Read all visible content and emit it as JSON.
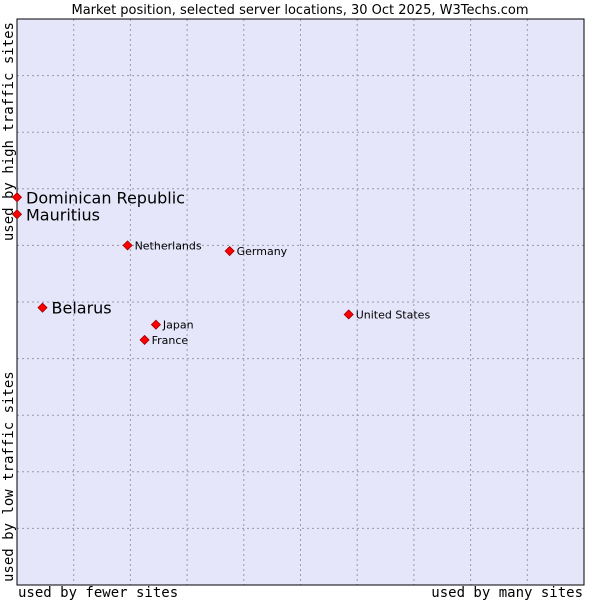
{
  "chart_data": {
    "type": "scatter",
    "title": "Market position, selected server locations, 30 Oct 2025, W3Techs.com",
    "xlabel_left": "used by fewer sites",
    "xlabel_right": "used by many sites",
    "ylabel_low": "used by low traffic sites",
    "ylabel_high": "used by high traffic sites",
    "xlim": [
      0,
      100
    ],
    "ylim": [
      0,
      100
    ],
    "grid": true,
    "colors": {
      "plot_background": "#e6e6fa",
      "grid": "#9999aa",
      "point": "#ff0000",
      "point_edge": "#990000",
      "frame": "#000000"
    },
    "points": [
      {
        "name": "Dominican Republic",
        "x": 0.0,
        "y": 68.5,
        "emphasis": true
      },
      {
        "name": "Mauritius",
        "x": 0.0,
        "y": 65.5,
        "emphasis": true
      },
      {
        "name": "Netherlands",
        "x": 19.5,
        "y": 60.0,
        "emphasis": false
      },
      {
        "name": "Germany",
        "x": 37.5,
        "y": 59.0,
        "emphasis": false
      },
      {
        "name": "Belarus",
        "x": 4.5,
        "y": 49.0,
        "emphasis": true
      },
      {
        "name": "Japan",
        "x": 24.5,
        "y": 46.0,
        "emphasis": false
      },
      {
        "name": "France",
        "x": 22.5,
        "y": 43.3,
        "emphasis": false
      },
      {
        "name": "United States",
        "x": 58.5,
        "y": 47.8,
        "emphasis": false
      }
    ]
  }
}
